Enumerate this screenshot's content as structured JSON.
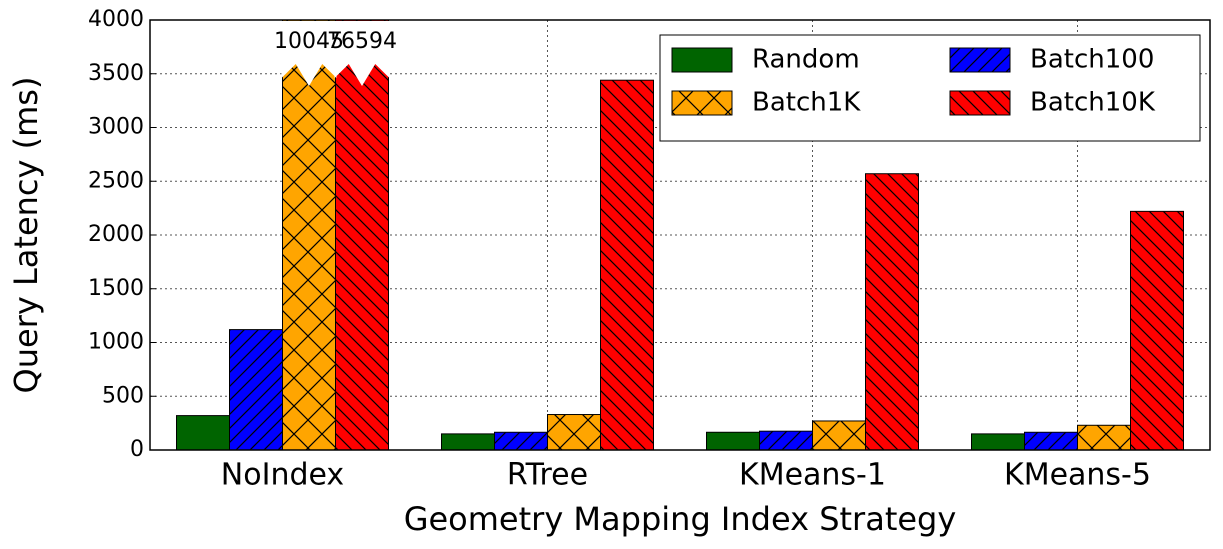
{
  "chart_data": {
    "type": "bar",
    "xlabel": "Geometry Mapping Index Strategy",
    "ylabel": "Query Latency (ms)",
    "categories": [
      "NoIndex",
      "RTree",
      "KMeans-1",
      "KMeans-5"
    ],
    "series": [
      {
        "name": "Random",
        "color": "#006400",
        "hatch": "none",
        "values": [
          320,
          150,
          165,
          150
        ]
      },
      {
        "name": "Batch100",
        "color": "#0000ff",
        "hatch": "/",
        "values": [
          1120,
          165,
          175,
          165
        ]
      },
      {
        "name": "Batch1K",
        "color": "#ffa500",
        "hatch": "x",
        "values": [
          10045,
          330,
          270,
          230
        ],
        "value_labels": [
          "10045",
          null,
          null,
          null
        ]
      },
      {
        "name": "Batch10K",
        "color": "#ff0000",
        "hatch": "\\",
        "values": [
          76594,
          3440,
          2570,
          2220
        ],
        "value_labels": [
          "76594",
          null,
          null,
          null
        ]
      }
    ],
    "ylim": [
      0,
      4000
    ],
    "yticks": [
      0,
      500,
      1000,
      1500,
      2000,
      2500,
      3000,
      3500,
      4000
    ],
    "grid": true,
    "legend": "upper right",
    "legend_columns": 2
  }
}
